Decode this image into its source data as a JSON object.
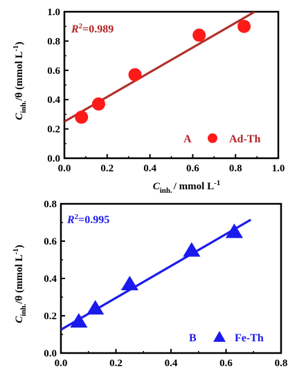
{
  "chart_data": [
    {
      "type": "scatter",
      "panel_label": "A",
      "legend_text": "Ad-Th",
      "r2_text": "=0.989",
      "color": "#ff1a1a",
      "annotation_color": "#b22222",
      "line_color": "#b0302a",
      "marker": "circle",
      "xlabel": {
        "main": "C",
        "sub": "inh.",
        "unit": "/ mmol L",
        "sup": "-1"
      },
      "ylabel": {
        "main": "C",
        "sub": "inh.",
        "mid": "/θ (mmol L",
        "sup": "-1",
        "end": ")"
      },
      "xlim": [
        0,
        1.0
      ],
      "ylim": [
        0,
        1.0
      ],
      "xticks": [
        "0.0",
        "0.2",
        "0.4",
        "0.6",
        "0.8",
        "1.0"
      ],
      "yticks": [
        "0.0",
        "0.2",
        "0.4",
        "0.6",
        "0.8",
        "1.0"
      ],
      "points": [
        {
          "x": 0.08,
          "y": 0.28
        },
        {
          "x": 0.16,
          "y": 0.37
        },
        {
          "x": 0.33,
          "y": 0.57
        },
        {
          "x": 0.63,
          "y": 0.84
        },
        {
          "x": 0.84,
          "y": 0.9
        }
      ],
      "fit": {
        "x0": 0.0,
        "y0": 0.25,
        "x1": 0.89,
        "y1": 1.0
      }
    },
    {
      "type": "scatter",
      "panel_label": "B",
      "legend_text": "Fe-Th",
      "r2_text": "=0.995",
      "color": "#1a1aee",
      "annotation_color": "#1a1aee",
      "line_color": "#1a1aee",
      "marker": "triangle",
      "xlabel": null,
      "ylabel": {
        "main": "C",
        "sub": "inh.",
        "mid": "/θ (mmol L",
        "sup": "-1",
        "end": ")"
      },
      "xlim": [
        0,
        0.8
      ],
      "ylim": [
        0,
        0.8
      ],
      "xticks": [
        "0.0",
        "0.2",
        "0.4",
        "0.6",
        "0.8"
      ],
      "yticks": [
        "0.0",
        "0.2",
        "0.4",
        "0.6",
        "0.8"
      ],
      "points": [
        {
          "x": 0.065,
          "y": 0.17
        },
        {
          "x": 0.125,
          "y": 0.24
        },
        {
          "x": 0.25,
          "y": 0.37
        },
        {
          "x": 0.475,
          "y": 0.55
        },
        {
          "x": 0.63,
          "y": 0.65
        }
      ],
      "fit": {
        "x0": 0.0,
        "y0": 0.125,
        "x1": 0.69,
        "y1": 0.715
      }
    }
  ]
}
